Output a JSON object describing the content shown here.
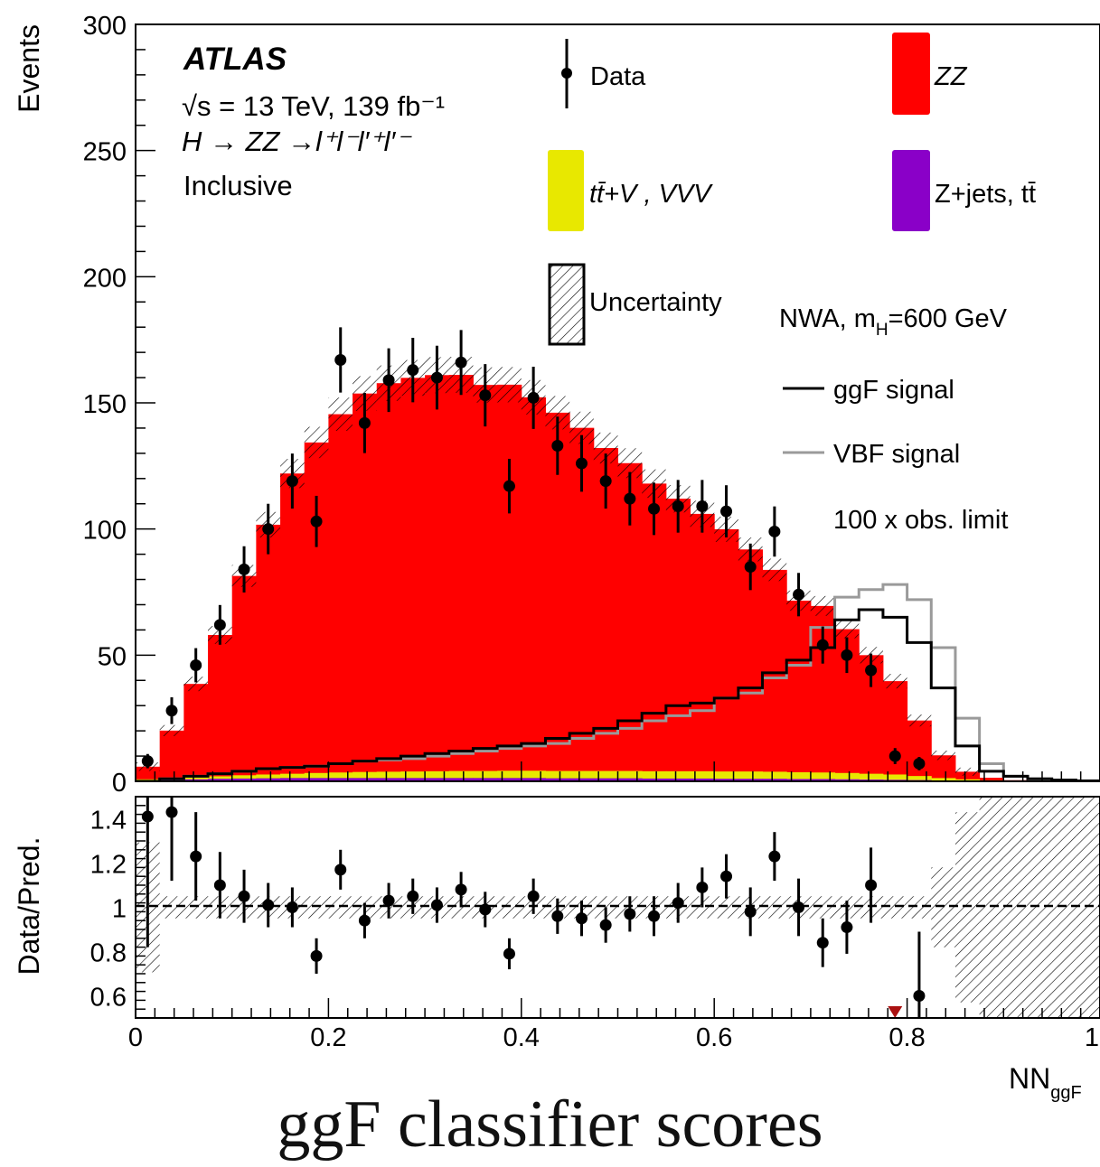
{
  "caption": "ggF classifier scores",
  "chart_data": [
    {
      "type": "bar",
      "panel": "main",
      "experiment": "ATLAS",
      "energy_lumi": "√s = 13 TeV, 139 fb⁻¹",
      "process": "H → ZZ →l⁺l⁻l′⁺l′⁻",
      "category": "Inclusive",
      "ylabel": "Events",
      "xlabel": "NNggF",
      "xlabel_main": "NN",
      "xlabel_sub": "ggF",
      "xlim": [
        0,
        1
      ],
      "ylim": [
        0,
        300
      ],
      "y_ticks": [
        0,
        50,
        100,
        150,
        200,
        250,
        300
      ],
      "x_ticks": [
        "0",
        "0.2",
        "0.4",
        "0.6",
        "0.8",
        "1"
      ],
      "bin_edges": [
        0,
        0.025,
        0.05,
        0.075,
        0.1,
        0.125,
        0.15,
        0.175,
        0.2,
        0.225,
        0.25,
        0.275,
        0.3,
        0.325,
        0.35,
        0.375,
        0.4,
        0.425,
        0.45,
        0.475,
        0.5,
        0.525,
        0.55,
        0.575,
        0.6,
        0.625,
        0.65,
        0.675,
        0.7,
        0.725,
        0.75,
        0.775,
        0.8,
        0.825,
        0.85,
        0.875,
        0.9,
        0.925,
        0.95,
        0.975,
        1.0
      ],
      "series": [
        {
          "name": "ZZ",
          "color": "#ff0000",
          "style": "stack",
          "values": [
            5,
            19,
            37,
            56,
            79,
            99,
            119,
            131,
            142,
            150,
            154,
            156,
            157,
            157,
            153,
            153,
            148,
            142,
            136,
            128,
            122,
            114,
            108,
            102,
            96,
            88,
            80,
            68,
            66,
            57,
            47,
            37,
            22,
            9,
            3,
            1,
            0.3,
            0.2,
            0.1,
            0.1
          ]
        },
        {
          "name": "tt̄+V , VVV",
          "color": "#e8e800",
          "style": "stack",
          "values": [
            0.3,
            0.5,
            0.8,
            1,
            1.3,
            1.5,
            1.7,
            2,
            2.2,
            2.4,
            2.5,
            2.6,
            2.7,
            2.8,
            2.8,
            2.9,
            2.9,
            2.9,
            2.9,
            2.9,
            2.9,
            2.9,
            2.9,
            2.9,
            2.9,
            2.9,
            2.8,
            2.7,
            2.6,
            2.5,
            2.3,
            2.1,
            1.6,
            1,
            0.6,
            0.3,
            0.1,
            0.1,
            0.05,
            0.05
          ]
        },
        {
          "name": "Z+jets, tt̄",
          "color": "#8a00c8",
          "style": "stack",
          "values": [
            0.5,
            0.6,
            0.8,
            1,
            1.1,
            1.2,
            1.3,
            1.3,
            1.3,
            1.3,
            1.3,
            1.3,
            1.3,
            1.3,
            1.3,
            1.3,
            1.3,
            1.2,
            1.2,
            1.2,
            1.2,
            1.1,
            1.1,
            1.1,
            1,
            1,
            1,
            0.9,
            0.9,
            0.8,
            0.7,
            0.6,
            0.5,
            0.3,
            0.2,
            0.1,
            0.05,
            0.05,
            0,
            0
          ]
        },
        {
          "name": "ggF signal",
          "color": "#000000",
          "style": "step",
          "values": [
            0,
            1,
            2,
            3,
            4,
            5,
            5.5,
            6,
            7,
            8,
            9,
            10,
            11,
            12,
            13,
            14,
            15,
            17,
            19,
            21,
            24,
            27,
            30,
            31,
            33,
            37,
            43,
            48,
            53,
            64,
            68,
            65,
            55,
            37,
            14,
            4,
            2,
            1,
            0.5,
            0.2
          ]
        },
        {
          "name": "VBF signal",
          "color": "#9a9a9a",
          "style": "step",
          "values": [
            0,
            1,
            2,
            3,
            4,
            5,
            5.5,
            6,
            7,
            8,
            8.5,
            9,
            10,
            11,
            12,
            13,
            14,
            15,
            17,
            19,
            21,
            24,
            26,
            28,
            33,
            35,
            41,
            46,
            61,
            73,
            76,
            78,
            72,
            53,
            25,
            7,
            2,
            1,
            0.5,
            0.2
          ]
        },
        {
          "name": "Data",
          "color": "#000000",
          "style": "points",
          "values": [
            8,
            28,
            46,
            62,
            84,
            100,
            119,
            103,
            167,
            142,
            159,
            163,
            160,
            166,
            153,
            117,
            152,
            133,
            126,
            119,
            112,
            108,
            109,
            109,
            107,
            85,
            99,
            74,
            54,
            50,
            44,
            10,
            7,
            null,
            null,
            null,
            null,
            null,
            null,
            null
          ]
        },
        {
          "name": "Uncertainty",
          "color": "#000000",
          "style": "hatch",
          "values": []
        }
      ],
      "legend": [
        {
          "label": "Data",
          "kind": "marker"
        },
        {
          "label": "ZZ",
          "kind": "fill",
          "color": "#ff0000"
        },
        {
          "label": "tt̄+V , VVV",
          "kind": "fill",
          "color": "#e8e800"
        },
        {
          "label": "Z+jets, tt̄",
          "kind": "fill",
          "color": "#8a00c8"
        },
        {
          "label": "Uncertainty",
          "kind": "hatch"
        },
        {
          "label": "ggF signal",
          "kind": "line",
          "color": "#000000"
        },
        {
          "label": "VBF signal",
          "kind": "line",
          "color": "#9a9a9a"
        }
      ],
      "signal_header": "NWA, mH=600 GeV",
      "signal_header_main": "NWA, m",
      "signal_header_sub": "H",
      "signal_header_tail": "=600 GeV",
      "signal_scale": "100 x obs. limit",
      "legend_placement": "top-right",
      "grid": false
    },
    {
      "type": "scatter",
      "panel": "ratio",
      "ylabel": "Data/Pred.",
      "ylim": [
        0.5,
        1.5
      ],
      "y_ticks": [
        "0.6",
        "0.8",
        "1",
        "1.2",
        "1.4"
      ],
      "reference_line": 1,
      "x": [
        0.0125,
        0.0375,
        0.0625,
        0.0875,
        0.1125,
        0.1375,
        0.1625,
        0.1875,
        0.2125,
        0.2375,
        0.2625,
        0.2875,
        0.3125,
        0.3375,
        0.3625,
        0.3875,
        0.4125,
        0.4375,
        0.4625,
        0.4875,
        0.5125,
        0.5375,
        0.5625,
        0.5875,
        0.6125,
        0.6375,
        0.6625,
        0.6875,
        0.7125,
        0.7375,
        0.7625,
        0.8125
      ],
      "values": [
        1.41,
        1.43,
        1.23,
        1.1,
        1.05,
        1.01,
        1.0,
        0.78,
        1.17,
        0.94,
        1.03,
        1.05,
        1.01,
        1.08,
        0.99,
        0.79,
        1.05,
        0.96,
        0.95,
        0.92,
        0.97,
        0.96,
        1.02,
        1.09,
        1.14,
        0.98,
        1.23,
        1.0,
        0.84,
        0.91,
        1.1,
        0.6
      ],
      "errors": [
        0.59,
        0.31,
        0.2,
        0.15,
        0.12,
        0.1,
        0.09,
        0.08,
        0.09,
        0.08,
        0.08,
        0.08,
        0.08,
        0.08,
        0.08,
        0.07,
        0.08,
        0.08,
        0.08,
        0.08,
        0.08,
        0.09,
        0.09,
        0.09,
        0.1,
        0.11,
        0.11,
        0.13,
        0.11,
        0.12,
        0.17,
        0.29
      ],
      "offscale_marker": {
        "x": 0.7875,
        "direction": "down",
        "color": "#aa1111"
      }
    }
  ]
}
